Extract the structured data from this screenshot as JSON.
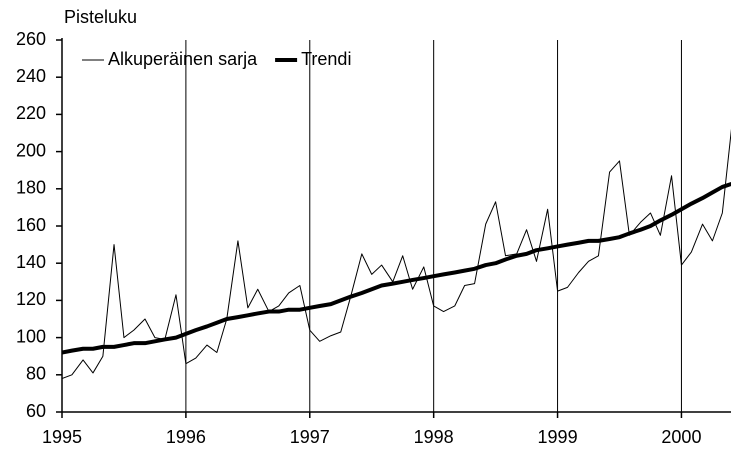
{
  "chart_data": {
    "type": "line",
    "y_label": "Pisteluku",
    "x": [
      1995,
      1995.08,
      1995.17,
      1995.25,
      1995.33,
      1995.42,
      1995.5,
      1995.58,
      1995.67,
      1995.75,
      1995.83,
      1995.92,
      1996,
      1996.08,
      1996.17,
      1996.25,
      1996.33,
      1996.42,
      1996.5,
      1996.58,
      1996.67,
      1996.75,
      1996.83,
      1996.92,
      1997,
      1997.08,
      1997.17,
      1997.25,
      1997.33,
      1997.42,
      1997.5,
      1997.58,
      1997.67,
      1997.75,
      1997.83,
      1997.92,
      1998,
      1998.08,
      1998.17,
      1998.25,
      1998.33,
      1998.42,
      1998.5,
      1998.58,
      1998.67,
      1998.75,
      1998.83,
      1998.92,
      1999,
      1999.08,
      1999.17,
      1999.25,
      1999.33,
      1999.42,
      1999.5,
      1999.58,
      1999.67,
      1999.75,
      1999.83,
      1999.92,
      2000,
      2000.08,
      2000.17,
      2000.25,
      2000.33,
      2000.42
    ],
    "series": [
      {
        "name": "Alkuperäinen sarja",
        "color": "#000000",
        "linewidth": 1,
        "values": [
          78,
          80,
          88,
          81,
          90,
          150,
          100,
          104,
          110,
          100,
          99,
          123,
          86,
          89,
          96,
          92,
          110,
          152,
          116,
          126,
          114,
          117,
          124,
          128,
          104,
          98,
          101,
          103,
          122,
          145,
          134,
          139,
          130,
          144,
          126,
          138,
          117,
          114,
          117,
          128,
          129,
          161,
          173,
          144,
          145,
          158,
          141,
          169,
          125,
          127,
          135,
          141,
          144,
          189,
          195,
          155,
          162,
          167,
          155,
          187,
          139,
          146,
          161,
          152,
          167,
          222
        ]
      },
      {
        "name": "Trendi",
        "color": "#000000",
        "linewidth": 4,
        "values": [
          92,
          93,
          94,
          94,
          95,
          95,
          96,
          97,
          97,
          98,
          99,
          100,
          102,
          104,
          106,
          108,
          110,
          111,
          112,
          113,
          114,
          114,
          115,
          115,
          116,
          117,
          118,
          120,
          122,
          124,
          126,
          128,
          129,
          130,
          131,
          132,
          133,
          134,
          135,
          136,
          137,
          139,
          140,
          142,
          144,
          145,
          147,
          148,
          149,
          150,
          151,
          152,
          152,
          153,
          154,
          156,
          158,
          160,
          163,
          166,
          169,
          172,
          175,
          178,
          181,
          183
        ]
      }
    ],
    "xlim": [
      1995,
      2000.4
    ],
    "xticks": [
      1995,
      1996,
      1997,
      1998,
      1999,
      2000
    ],
    "ylim": [
      60,
      260
    ],
    "yticks": [
      60,
      80,
      100,
      120,
      140,
      160,
      180,
      200,
      220,
      240,
      260
    ],
    "grid_x": true,
    "legend": "upper left"
  }
}
